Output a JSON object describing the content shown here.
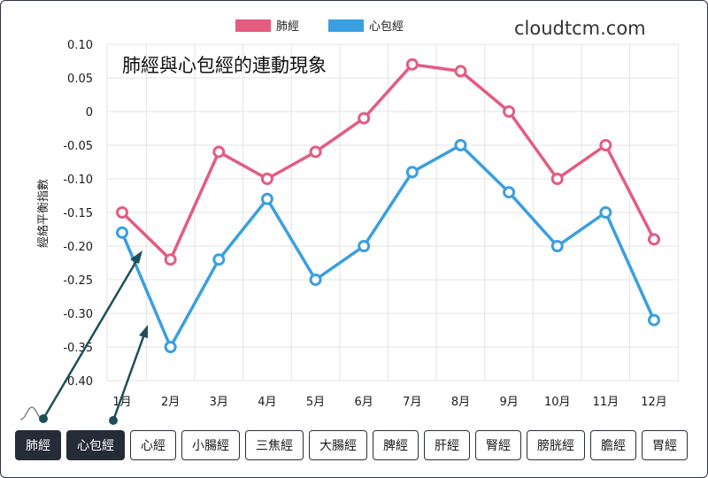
{
  "watermark": "cloudtcm.com",
  "chart_data": {
    "type": "line",
    "title": "肺經與心包經的連動現象",
    "ylabel": "經絡平衡指數",
    "xlabel": "",
    "categories": [
      "1月",
      "2月",
      "3月",
      "4月",
      "5月",
      "6月",
      "7月",
      "8月",
      "9月",
      "10月",
      "11月",
      "12月"
    ],
    "series": [
      {
        "name": "肺經",
        "color": "#e45c80",
        "values": [
          -0.15,
          -0.22,
          -0.06,
          -0.1,
          -0.06,
          -0.01,
          0.07,
          0.06,
          0.0,
          -0.1,
          -0.05,
          -0.19
        ]
      },
      {
        "name": "心包經",
        "color": "#3a9fe0",
        "values": [
          -0.18,
          -0.35,
          -0.22,
          -0.13,
          -0.25,
          -0.2,
          -0.09,
          -0.05,
          -0.12,
          -0.2,
          -0.15,
          -0.31
        ]
      }
    ],
    "ylim": [
      -0.4,
      0.1
    ],
    "yticks": [
      "0.10",
      "0.05",
      "0",
      "-0.05",
      "-0.10",
      "-0.15",
      "-0.20",
      "-0.25",
      "-0.30",
      "-0.35",
      "-0.40"
    ],
    "grid": true,
    "legend_position": "top-center"
  },
  "buttons": [
    "肺經",
    "心包經",
    "心經",
    "小腸經",
    "三焦經",
    "大腸經",
    "脾經",
    "肝經",
    "腎經",
    "膀胱經",
    "膽經",
    "胃經"
  ]
}
